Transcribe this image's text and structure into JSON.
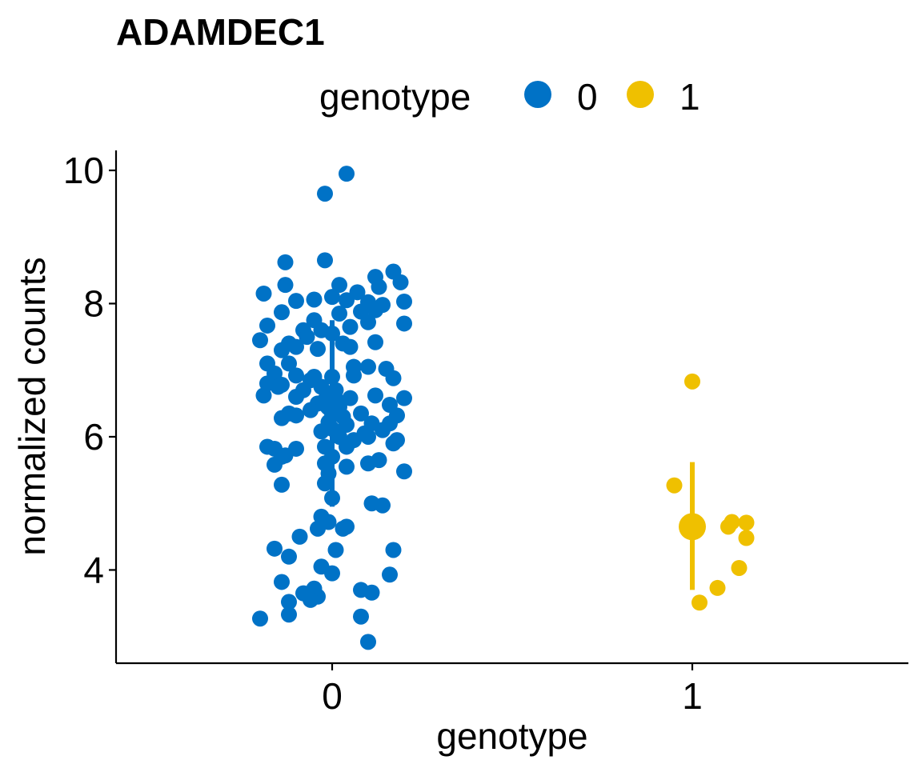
{
  "chart_data": {
    "type": "scatter",
    "title": "ADAMDEC1",
    "xlabel": "genotype",
    "ylabel": "normalized counts",
    "categories": [
      "0",
      "1"
    ],
    "yticks": [
      4,
      6,
      8,
      10
    ],
    "ylim": [
      2.6,
      10.3
    ],
    "xlim": [
      -0.6,
      1.6
    ],
    "grid": false,
    "legend": {
      "title": "genotype",
      "position": "top",
      "entries": [
        {
          "label": "0",
          "color": "#0072C6"
        },
        {
          "label": "1",
          "color": "#EFC000"
        }
      ]
    },
    "series": [
      {
        "name": "0",
        "color": "#0072C6",
        "summary": {
          "x": 0,
          "median": 6.5,
          "low": 4.95,
          "high": 7.75
        },
        "points": [
          [
            0.04,
            9.95
          ],
          [
            -0.02,
            9.65
          ],
          [
            -0.02,
            8.65
          ],
          [
            -0.13,
            8.62
          ],
          [
            0.12,
            8.4
          ],
          [
            0.17,
            8.48
          ],
          [
            0.02,
            8.28
          ],
          [
            -0.13,
            8.28
          ],
          [
            0.13,
            8.25
          ],
          [
            0.19,
            8.32
          ],
          [
            -0.19,
            8.15
          ],
          [
            0.07,
            8.17
          ],
          [
            0.1,
            8.02
          ],
          [
            0.14,
            7.98
          ],
          [
            0.2,
            8.03
          ],
          [
            -0.1,
            8.04
          ],
          [
            -0.05,
            8.06
          ],
          [
            0.0,
            8.1
          ],
          [
            0.04,
            8.05
          ],
          [
            -0.14,
            7.87
          ],
          [
            0.08,
            7.88
          ],
          [
            0.02,
            7.85
          ],
          [
            0.12,
            7.9
          ],
          [
            -0.18,
            7.67
          ],
          [
            -0.05,
            7.75
          ],
          [
            -0.03,
            7.6
          ],
          [
            0.0,
            7.55
          ],
          [
            0.05,
            7.65
          ],
          [
            -0.08,
            7.6
          ],
          [
            0.1,
            7.72
          ],
          [
            0.2,
            7.7
          ],
          [
            -0.07,
            7.5
          ],
          [
            -0.12,
            7.4
          ],
          [
            0.03,
            7.4
          ],
          [
            -0.14,
            7.3
          ],
          [
            -0.2,
            7.45
          ],
          [
            -0.1,
            7.35
          ],
          [
            0.12,
            7.42
          ],
          [
            -0.04,
            7.32
          ],
          [
            0.05,
            7.35
          ],
          [
            -0.18,
            7.1
          ],
          [
            -0.12,
            7.1
          ],
          [
            0.06,
            7.05
          ],
          [
            0.1,
            7.05
          ],
          [
            0.15,
            7.02
          ],
          [
            -0.16,
            6.95
          ],
          [
            -0.1,
            6.92
          ],
          [
            -0.05,
            6.9
          ],
          [
            0.0,
            6.9
          ],
          [
            0.06,
            6.92
          ],
          [
            0.17,
            6.88
          ],
          [
            -0.18,
            6.8
          ],
          [
            -0.14,
            6.78
          ],
          [
            -0.06,
            6.85
          ],
          [
            -0.03,
            6.75
          ],
          [
            0.01,
            6.7
          ],
          [
            -0.08,
            6.7
          ],
          [
            -0.19,
            6.62
          ],
          [
            -0.15,
            6.75
          ],
          [
            -0.1,
            6.6
          ],
          [
            0.05,
            6.58
          ],
          [
            0.12,
            6.62
          ],
          [
            -0.02,
            6.55
          ],
          [
            0.01,
            6.52
          ],
          [
            -0.04,
            6.5
          ],
          [
            0.02,
            6.45
          ],
          [
            0.16,
            6.48
          ],
          [
            0.2,
            6.58
          ],
          [
            -0.12,
            6.35
          ],
          [
            -0.06,
            6.4
          ],
          [
            -0.1,
            6.32
          ],
          [
            0.0,
            6.35
          ],
          [
            0.03,
            6.3
          ],
          [
            0.08,
            6.35
          ],
          [
            0.18,
            6.32
          ],
          [
            -0.14,
            6.28
          ],
          [
            -0.01,
            6.22
          ],
          [
            0.04,
            6.18
          ],
          [
            0.11,
            6.2
          ],
          [
            0.16,
            6.2
          ],
          [
            0.14,
            6.1
          ],
          [
            0.09,
            6.05
          ],
          [
            0.1,
            6.0
          ],
          [
            0.06,
            5.95
          ],
          [
            -0.03,
            6.08
          ],
          [
            0.0,
            6.12
          ],
          [
            0.02,
            6.0
          ],
          [
            0.17,
            5.9
          ],
          [
            0.18,
            5.95
          ],
          [
            -0.18,
            5.85
          ],
          [
            -0.16,
            5.82
          ],
          [
            -0.1,
            5.82
          ],
          [
            -0.13,
            5.72
          ],
          [
            0.04,
            5.85
          ],
          [
            -0.02,
            5.85
          ],
          [
            0.13,
            5.65
          ],
          [
            0.0,
            5.7
          ],
          [
            -0.02,
            5.6
          ],
          [
            0.04,
            5.55
          ],
          [
            0.1,
            5.6
          ],
          [
            -0.16,
            5.58
          ],
          [
            -0.14,
            5.7
          ],
          [
            0.2,
            5.48
          ],
          [
            -0.01,
            5.45
          ],
          [
            -0.02,
            5.3
          ],
          [
            -0.14,
            5.28
          ],
          [
            0.0,
            5.08
          ],
          [
            0.11,
            5.0
          ],
          [
            0.14,
            4.97
          ],
          [
            -0.03,
            4.8
          ],
          [
            -0.01,
            4.72
          ],
          [
            0.03,
            4.62
          ],
          [
            -0.04,
            4.62
          ],
          [
            0.04,
            4.65
          ],
          [
            -0.09,
            4.5
          ],
          [
            0.17,
            4.3
          ],
          [
            -0.16,
            4.32
          ],
          [
            0.01,
            4.3
          ],
          [
            -0.12,
            4.2
          ],
          [
            -0.03,
            4.05
          ],
          [
            0.0,
            3.95
          ],
          [
            0.16,
            3.93
          ],
          [
            -0.14,
            3.82
          ],
          [
            -0.08,
            3.65
          ],
          [
            -0.05,
            3.72
          ],
          [
            0.08,
            3.7
          ],
          [
            0.11,
            3.66
          ],
          [
            -0.04,
            3.6
          ],
          [
            -0.06,
            3.55
          ],
          [
            -0.12,
            3.52
          ],
          [
            0.08,
            3.3
          ],
          [
            -0.12,
            3.33
          ],
          [
            -0.2,
            3.27
          ],
          [
            0.1,
            2.92
          ]
        ]
      },
      {
        "name": "1",
        "color": "#EFC000",
        "summary": {
          "x": 1,
          "median": 4.65,
          "low": 3.7,
          "high": 5.62
        },
        "points": [
          [
            1.0,
            6.83
          ],
          [
            0.95,
            5.27
          ],
          [
            1.11,
            4.72
          ],
          [
            1.1,
            4.65
          ],
          [
            1.15,
            4.71
          ],
          [
            1.15,
            4.48
          ],
          [
            1.13,
            4.03
          ],
          [
            1.07,
            3.73
          ],
          [
            1.02,
            3.51
          ]
        ]
      }
    ]
  }
}
